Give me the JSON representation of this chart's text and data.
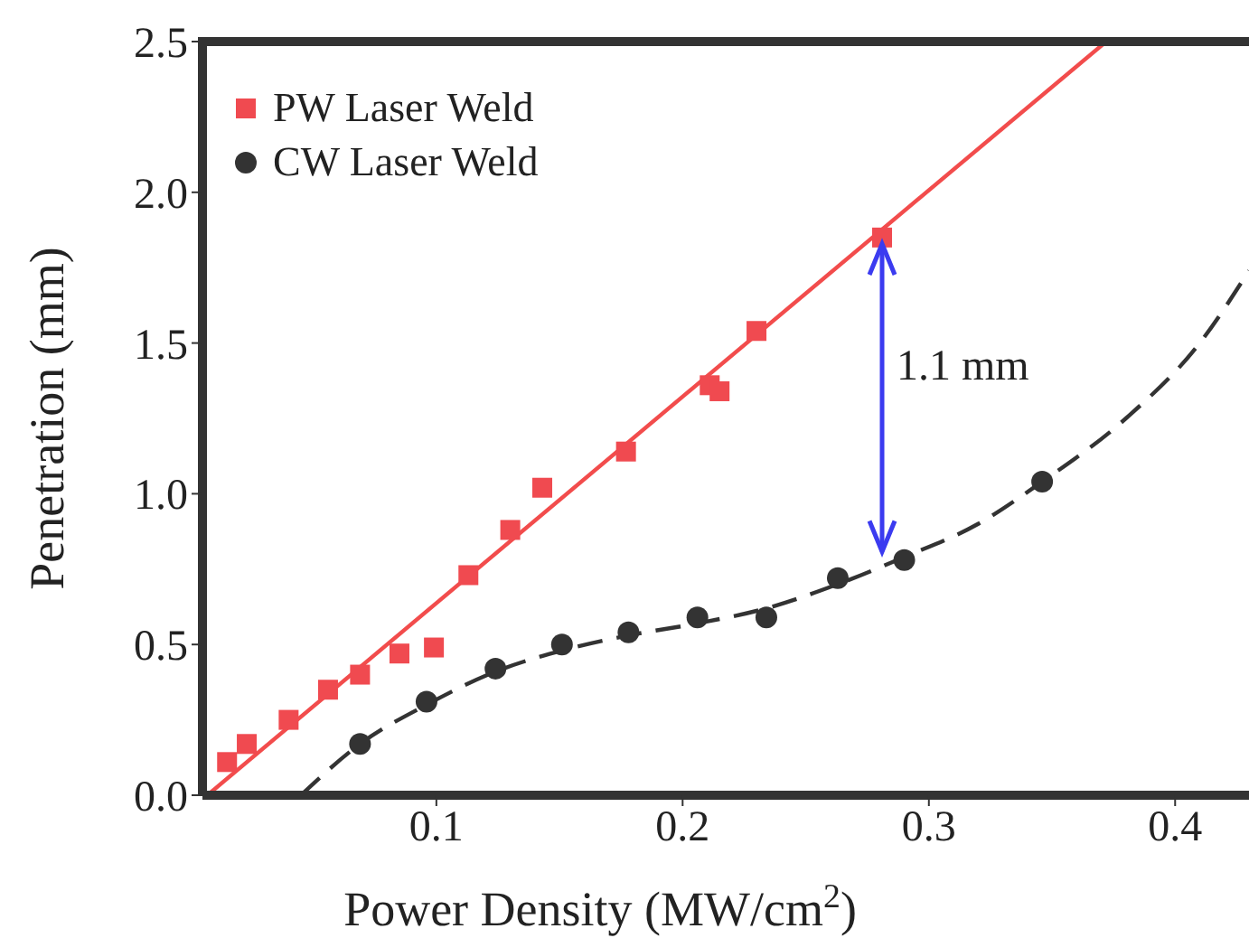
{
  "chart_data": {
    "type": "scatter",
    "xlabel": "Power Density (MW/cm$^{2}$)",
    "ylabel": "Penetration (mm)",
    "xlim": [
      0.005,
      0.43
    ],
    "xticks": [
      0.1,
      0.2,
      0.3,
      0.4
    ],
    "ylim": [
      0,
      2.5
    ],
    "yticks": [
      {
        "value": 0,
        "label": "0.0"
      },
      0.5,
      {
        "value": 1,
        "label": "1.0"
      },
      1.5,
      {
        "value": 2,
        "label": "2.0"
      },
      2.5
    ],
    "grid": false,
    "legend": "top left",
    "annotations": [
      "1.1 mm"
    ],
    "series": [
      {
        "name": "PW Laser Weld",
        "color": "#f04a50",
        "marker": "square",
        "x": [
          0.015,
          0.023,
          0.04,
          0.056,
          0.069,
          0.085,
          0.099,
          0.113,
          0.13,
          0.143,
          0.177,
          0.211,
          0.215,
          0.23,
          0.281
        ],
        "values": [
          0.11,
          0.17,
          0.25,
          0.35,
          0.4,
          0.47,
          0.49,
          0.73,
          0.88,
          1.02,
          1.14,
          1.36,
          1.34,
          1.54,
          1.85
        ]
      },
      {
        "name": "CW Laser Weld",
        "color": "#333333",
        "marker": "circle",
        "x": [
          0.069,
          0.096,
          0.124,
          0.151,
          0.178,
          0.206,
          0.234,
          0.263,
          0.29,
          0.346
        ],
        "values": [
          0.17,
          0.31,
          0.42,
          0.5,
          0.54,
          0.59,
          0.59,
          0.72,
          0.78,
          1.04
        ]
      },
      {
        "type": "line",
        "color": "#f24c4c",
        "line_style": "solid",
        "marker": "none",
        "x": [
          0.007,
          0.372
        ],
        "values": [
          0,
          2.5
        ]
      },
      {
        "type": "line",
        "color": "#333333",
        "line_style": "dashed",
        "marker": "none",
        "x": [
          0.045,
          0.069,
          0.096,
          0.124,
          0.151,
          0.178,
          0.206,
          0.234,
          0.263,
          0.29,
          0.32,
          0.346,
          0.38,
          0.41,
          0.43
        ],
        "values": [
          0,
          0.17,
          0.3,
          0.41,
          0.48,
          0.53,
          0.57,
          0.62,
          0.7,
          0.79,
          0.9,
          1.04,
          1.25,
          1.5,
          1.74
        ]
      }
    ]
  }
}
